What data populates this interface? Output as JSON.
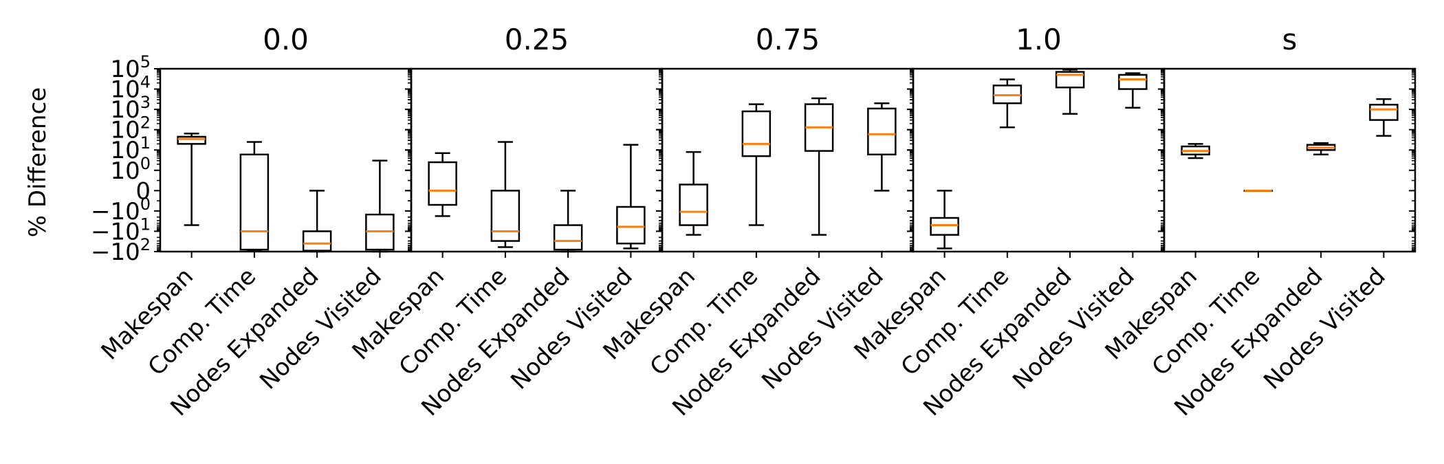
{
  "chart_data": {
    "type": "boxplot",
    "ylabel": "% Difference",
    "yscale": "symlog",
    "ylim": [
      -100,
      100000
    ],
    "ytick_labels": [
      "10^5",
      "10^4",
      "10^3",
      "10^2",
      "10^1",
      "10^0",
      "0",
      "-10^0",
      "-10^1",
      "-10^2"
    ],
    "categories": [
      "Makespan",
      "Comp. Time",
      "Nodes Expanded",
      "Nodes Visited"
    ],
    "colors": {
      "box": "#000000",
      "median": "#ff7f0e"
    },
    "panels": [
      {
        "title": "0.0",
        "boxes": [
          {
            "category": "Makespan",
            "whislo": -5,
            "q1": 20,
            "med": 35,
            "q3": 45,
            "whishi": 65
          },
          {
            "category": "Comp. Time",
            "whislo": -90,
            "q1": -80,
            "med": -10,
            "q3": 6,
            "whishi": 25
          },
          {
            "category": "Nodes Expanded",
            "whislo": -100,
            "q1": -90,
            "med": -40,
            "q3": -10,
            "whishi": 0
          },
          {
            "category": "Nodes Visited",
            "whislo": -100,
            "q1": -80,
            "med": -10,
            "q3": -1.5,
            "whishi": 3
          }
        ]
      },
      {
        "title": "0.25",
        "boxes": [
          {
            "category": "Makespan",
            "whislo": -1.8,
            "q1": -0.7,
            "med": 0,
            "q3": 2.5,
            "whishi": 7
          },
          {
            "category": "Comp. Time",
            "whislo": -60,
            "q1": -30,
            "med": -10,
            "q3": 0,
            "whishi": 25
          },
          {
            "category": "Nodes Expanded",
            "whislo": -100,
            "q1": -80,
            "med": -30,
            "q3": -5,
            "whishi": 0
          },
          {
            "category": "Nodes Visited",
            "whislo": -70,
            "q1": -40,
            "med": -6,
            "q3": -0.8,
            "whishi": 18
          }
        ]
      },
      {
        "title": "0.75",
        "boxes": [
          {
            "category": "Makespan",
            "whislo": -15,
            "q1": -5,
            "med": -1.1,
            "q3": 0.3,
            "whishi": 8
          },
          {
            "category": "Comp. Time",
            "whislo": -5,
            "q1": 5,
            "med": 20,
            "q3": 800,
            "whishi": 1800
          },
          {
            "category": "Nodes Expanded",
            "whislo": -15,
            "q1": 9,
            "med": 130,
            "q3": 1800,
            "whishi": 3500
          },
          {
            "category": "Nodes Visited",
            "whislo": 0,
            "q1": 6,
            "med": 60,
            "q3": 1100,
            "whishi": 2000
          }
        ]
      },
      {
        "title": "1.0",
        "boxes": [
          {
            "category": "Makespan",
            "whislo": -70,
            "q1": -15,
            "med": -5,
            "q3": -2.2,
            "whishi": 0
          },
          {
            "category": "Comp. Time",
            "whislo": 130,
            "q1": 2000,
            "med": 5000,
            "q3": 15000,
            "whishi": 30000
          },
          {
            "category": "Nodes Expanded",
            "whislo": 600,
            "q1": 12000,
            "med": 50000,
            "q3": 70000,
            "whishi": 90000
          },
          {
            "category": "Nodes Visited",
            "whislo": 1200,
            "q1": 10000,
            "med": 30000,
            "q3": 50000,
            "whishi": 60000
          }
        ]
      },
      {
        "title": "s",
        "boxes": [
          {
            "category": "Makespan",
            "whislo": 4,
            "q1": 6,
            "med": 9,
            "q3": 15,
            "whishi": 20
          },
          {
            "category": "Comp. Time",
            "whislo": 0,
            "q1": 0,
            "med": 0,
            "q3": 0,
            "whishi": 0
          },
          {
            "category": "Nodes Expanded",
            "whislo": 6,
            "q1": 10,
            "med": 13,
            "q3": 18,
            "whishi": 22
          },
          {
            "category": "Nodes Visited",
            "whislo": 50,
            "q1": 300,
            "med": 1000,
            "q3": 1700,
            "whishi": 3200
          }
        ]
      }
    ]
  }
}
